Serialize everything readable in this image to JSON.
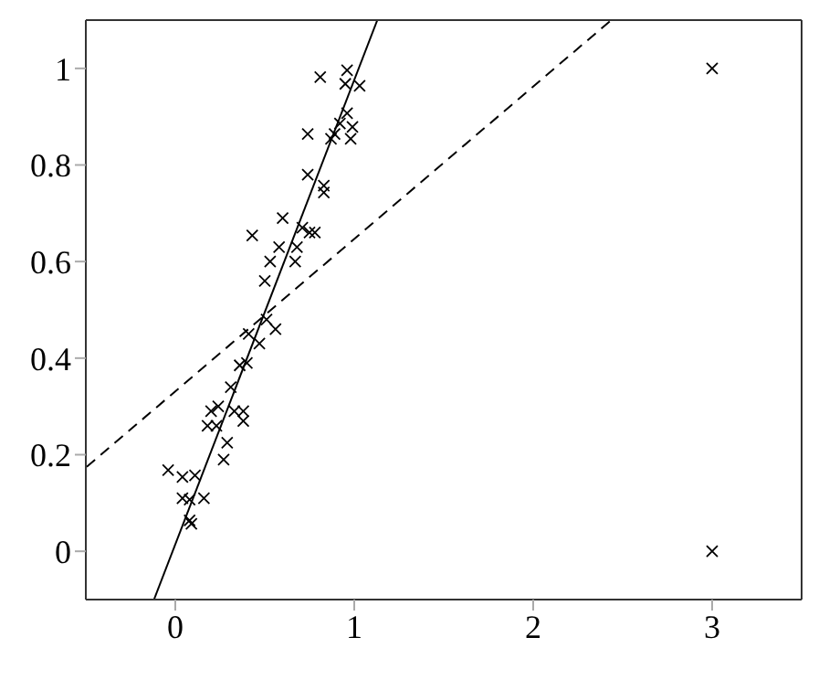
{
  "chart_data": {
    "type": "scatter",
    "marker": "cross",
    "grid": false,
    "legend": false,
    "xlim": [
      -0.5,
      3.5
    ],
    "xticks": [
      0,
      1,
      2,
      3
    ],
    "ylim": [
      -0.1,
      1.1
    ],
    "yticks": [
      0,
      0.2,
      0.4,
      0.6,
      0.8,
      1
    ],
    "series": [
      {
        "color": "#000000",
        "x": [
          -0.04,
          0.04,
          0.11,
          0.04,
          0.08,
          0.16,
          0.08,
          0.09,
          0.18,
          0.23,
          0.2,
          0.24,
          0.29,
          0.27,
          0.33,
          0.38,
          0.38,
          0.31,
          0.36,
          0.4,
          0.41,
          0.47,
          0.51,
          0.56,
          0.43,
          0.6,
          0.58,
          0.68,
          0.53,
          0.67,
          0.5,
          0.71,
          0.75,
          0.78,
          0.74,
          0.83,
          0.83,
          0.74,
          0.87,
          0.89,
          0.92,
          0.96,
          0.99,
          0.98,
          0.81,
          0.96,
          0.95,
          1.03,
          3,
          3
        ],
        "values": [
          0.168,
          0.154,
          0.157,
          0.11,
          0.107,
          0.11,
          0.064,
          0.057,
          0.26,
          0.26,
          0.29,
          0.3,
          0.225,
          0.19,
          0.29,
          0.29,
          0.27,
          0.34,
          0.385,
          0.39,
          0.45,
          0.43,
          0.48,
          0.46,
          0.654,
          0.69,
          0.63,
          0.63,
          0.6,
          0.6,
          0.56,
          0.67,
          0.66,
          0.66,
          0.78,
          0.757,
          0.743,
          0.864,
          0.854,
          0.864,
          0.886,
          0.907,
          0.879,
          0.854,
          0.982,
          0.996,
          0.968,
          0.964,
          1,
          0
        ]
      },
      {
        "type": "line",
        "color": "#000000",
        "line_style": "solid",
        "marker": "none",
        "x": [
          -0.119,
          1.129
        ],
        "values": [
          -0.1,
          1.1
        ]
      },
      {
        "type": "line",
        "color": "#000000",
        "line_style": "dashed",
        "marker": "none",
        "x": [
          -0.495,
          2.436
        ],
        "values": [
          0.175,
          1.1
        ]
      }
    ]
  }
}
